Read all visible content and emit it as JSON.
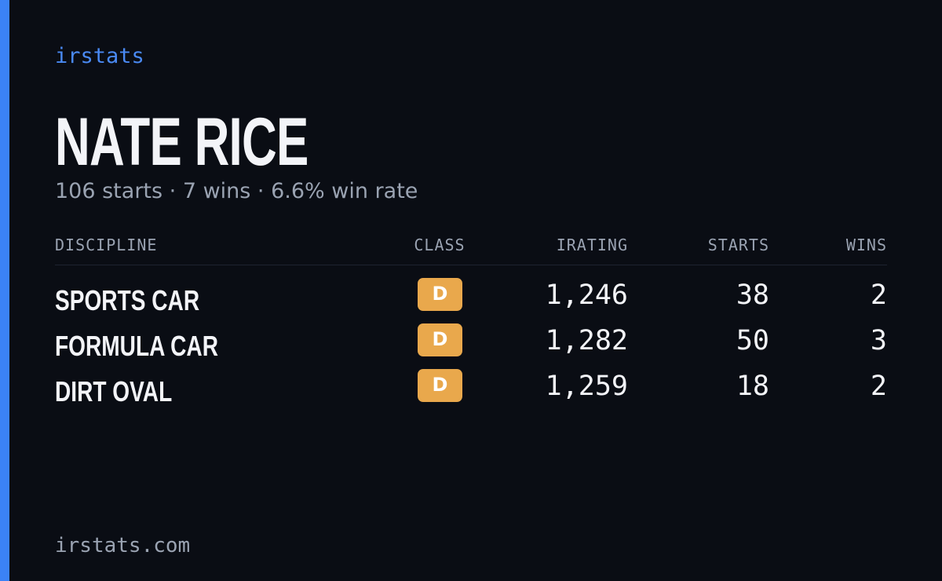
{
  "header": {
    "brand": "irstats",
    "name": "NATE RICE",
    "summary": "106 starts · 7 wins · 6.6% win rate"
  },
  "table": {
    "columns": [
      "DISCIPLINE",
      "CLASS",
      "IRATING",
      "STARTS",
      "WINS"
    ],
    "rows": [
      [
        "SPORTS CAR",
        "D",
        "1,246",
        "38",
        "2"
      ],
      [
        "FORMULA CAR",
        "D",
        "1,282",
        "50",
        "3"
      ],
      [
        "DIRT OVAL",
        "D",
        "1,259",
        "18",
        "2"
      ]
    ]
  },
  "footer": {
    "url": "irstats.com"
  }
}
